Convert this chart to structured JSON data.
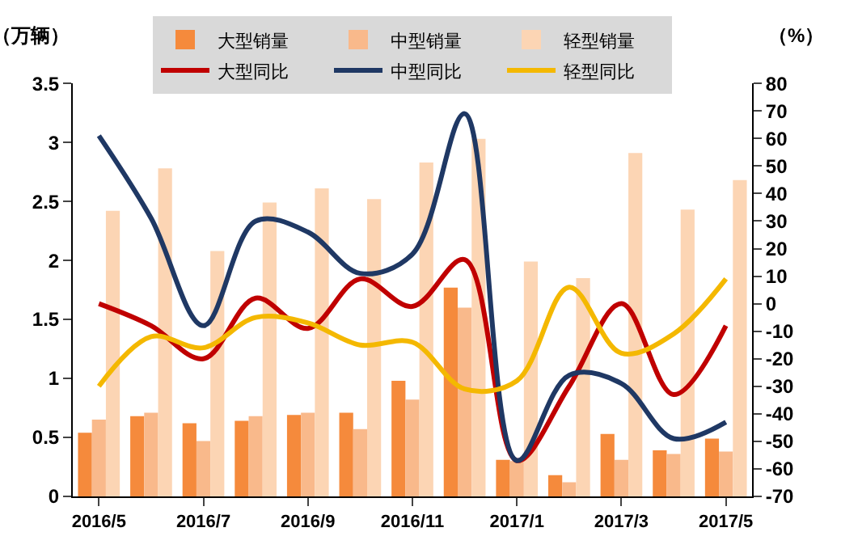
{
  "chart_data": {
    "type": "bar",
    "ylabel": "（万辆）",
    "y2label": "（%）",
    "categories": [
      "2016/5",
      null,
      "2016/7",
      null,
      "2016/9",
      null,
      "2016/11",
      null,
      "2017/1",
      null,
      "2017/3",
      null,
      "2017/5"
    ],
    "series": [
      {
        "name": "大型销量",
        "color": "#f58a3c",
        "values": [
          0.54,
          0.68,
          0.62,
          0.64,
          0.69,
          0.71,
          0.98,
          1.77,
          0.31,
          0.18,
          0.53,
          0.39,
          0.49
        ]
      },
      {
        "name": "中型销量",
        "color": "#f9b98b",
        "values": [
          0.65,
          0.71,
          0.47,
          0.68,
          0.71,
          0.57,
          0.82,
          1.6,
          0.3,
          0.12,
          0.31,
          0.36,
          0.38
        ]
      },
      {
        "name": "轻型销量",
        "color": "#fcd5b4",
        "values": [
          2.42,
          2.78,
          2.08,
          2.49,
          2.61,
          2.52,
          2.83,
          3.03,
          1.99,
          1.85,
          2.91,
          2.43,
          2.68
        ]
      },
      {
        "name": "大型同比",
        "type": "line",
        "axis": "y2",
        "color": "#c00000",
        "values": [
          0,
          -8,
          -20,
          2,
          -9,
          9,
          -1,
          16,
          -57,
          -30,
          0,
          -33,
          -8
        ]
      },
      {
        "name": "中型同比",
        "type": "line",
        "axis": "y2",
        "color": "#1f3864",
        "values": [
          61,
          31,
          -8,
          30,
          26,
          11,
          18,
          69,
          -57,
          -26,
          -29,
          -49,
          -43
        ]
      },
      {
        "name": "轻型同比",
        "type": "line",
        "axis": "y2",
        "color": "#f4b800",
        "values": [
          -30,
          -12,
          -16,
          -5,
          -7,
          -15,
          -14,
          -31,
          -28,
          6,
          -18,
          -11,
          9
        ]
      }
    ],
    "ylim": [
      0,
      3.5
    ],
    "yticks": [
      0,
      0.5,
      1,
      1.5,
      2,
      2.5,
      3,
      3.5
    ],
    "y2lim": [
      -70,
      80
    ],
    "y2ticks": [
      -70,
      -60,
      -50,
      -40,
      -30,
      -20,
      -10,
      0,
      10,
      20,
      30,
      40,
      50,
      60,
      70,
      80
    ],
    "legend": "top",
    "grid": false,
    "marker": "none"
  }
}
